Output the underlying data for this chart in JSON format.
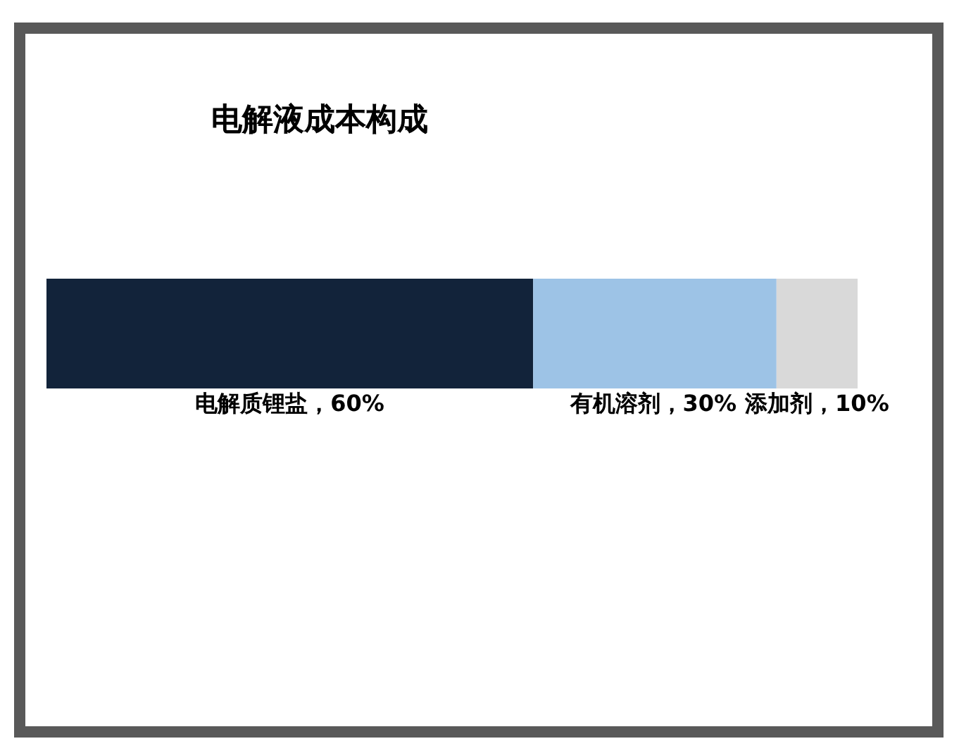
{
  "chart_data": {
    "type": "bar",
    "title": "电解液成本构成",
    "orientation": "horizontal",
    "stacked": true,
    "categories": [
      null
    ],
    "series": [
      {
        "color": "#12233a",
        "values": [
          60
        ],
        "value_labels": [
          "电解质锂盐，60%"
        ]
      },
      {
        "color": "#9dc3e6",
        "values": [
          30
        ],
        "value_labels": [
          "有机溶剂，30%"
        ]
      },
      {
        "color": "#d9d9d9",
        "values": [
          10
        ],
        "value_labels": [
          "添加剂，10%"
        ]
      }
    ]
  }
}
